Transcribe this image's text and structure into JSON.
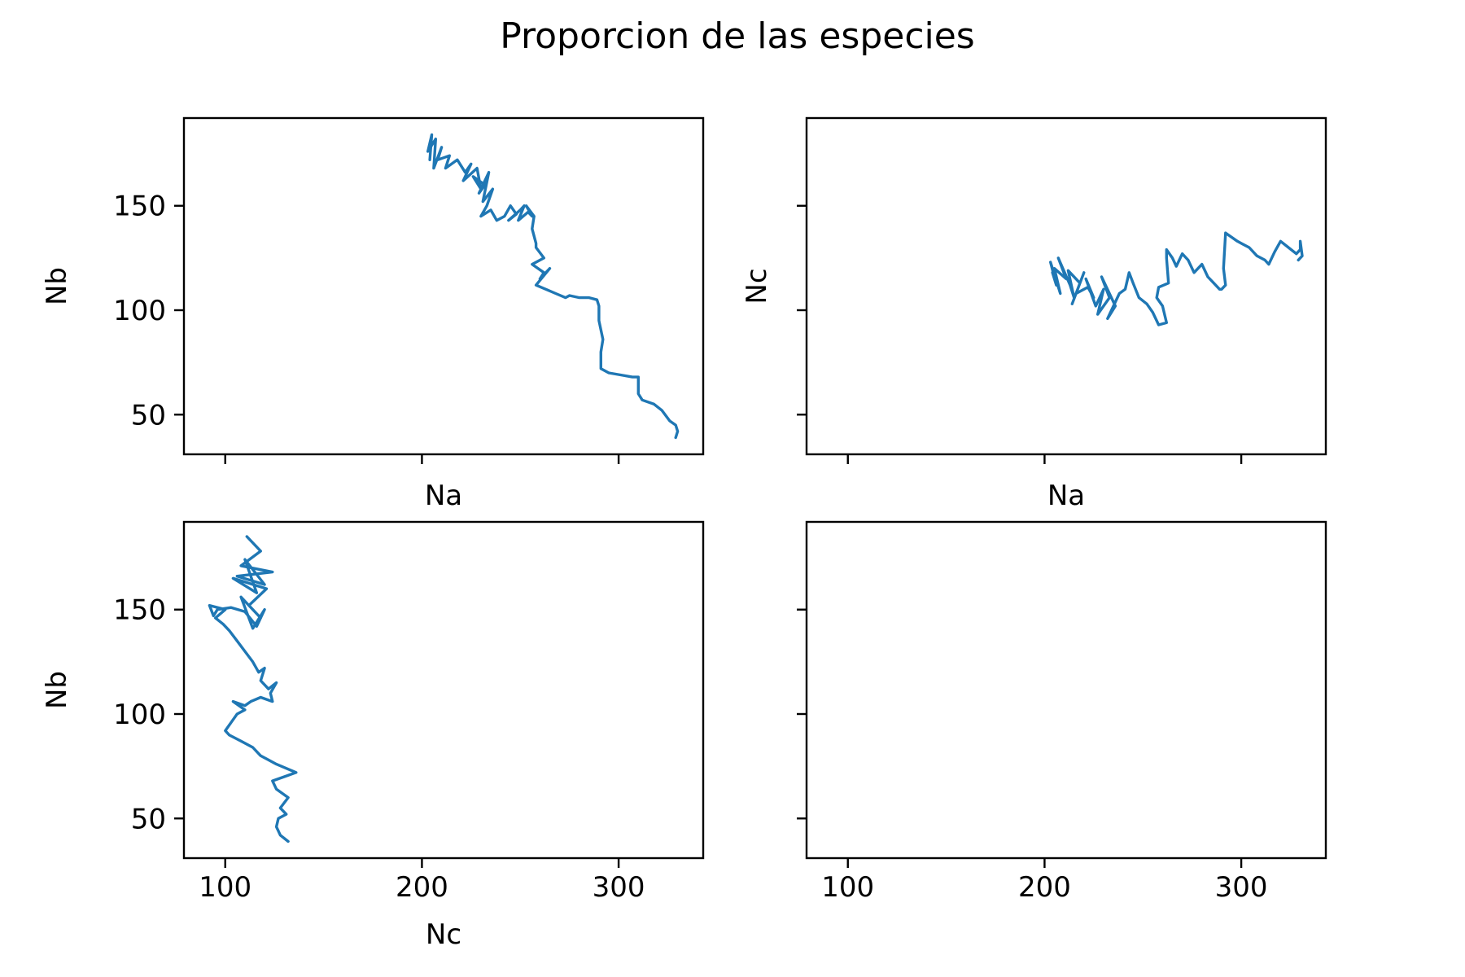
{
  "title": "Proporcion de las especies",
  "colors": {
    "line": "#1f77b4",
    "axes": "#000000",
    "background": "#ffffff"
  },
  "shared_x_ticks": [
    100,
    200,
    300
  ],
  "shared_y_ticks": [
    50,
    100,
    150
  ],
  "chart_data": [
    {
      "type": "line",
      "panel": "top-left",
      "xlabel": "Na",
      "ylabel": "Nb",
      "xlim": [
        79,
        343
      ],
      "ylim": [
        31,
        192
      ],
      "xticks": [
        100,
        200,
        300
      ],
      "yticks": [
        50,
        100,
        150
      ],
      "show_x_ticklabels": false,
      "show_y_ticklabels": true,
      "series": [
        {
          "x": [
            204,
            205,
            203,
            207,
            206,
            210,
            208,
            214,
            212,
            218,
            222,
            225,
            221,
            228,
            230,
            226,
            232,
            229,
            234,
            231,
            236,
            233,
            230,
            235,
            238,
            242,
            245,
            248,
            244,
            250,
            252,
            249,
            254,
            256,
            253,
            257,
            256,
            258,
            258,
            262,
            256,
            262,
            260,
            265,
            258,
            263,
            268,
            273,
            275,
            280,
            285,
            289,
            290,
            290,
            292,
            291,
            291,
            291,
            295,
            301,
            307,
            310,
            310,
            312,
            318,
            322,
            326,
            329,
            330,
            329
          ],
          "y": [
            172,
            184,
            176,
            182,
            168,
            178,
            172,
            174,
            168,
            172,
            166,
            170,
            162,
            168,
            158,
            164,
            160,
            156,
            166,
            152,
            158,
            150,
            145,
            148,
            143,
            145,
            150,
            146,
            143,
            148,
            150,
            143,
            147,
            145,
            150,
            145,
            139,
            132,
            130,
            125,
            122,
            118,
            115,
            120,
            112,
            110,
            108,
            106,
            107,
            106,
            106,
            105,
            102,
            95,
            86,
            80,
            75,
            72,
            70,
            69,
            68,
            68,
            60,
            57,
            55,
            52,
            47,
            45,
            42,
            39
          ]
        }
      ]
    },
    {
      "type": "line",
      "panel": "top-right",
      "xlabel": "Na",
      "ylabel": "Nc",
      "xlim": [
        79,
        343
      ],
      "ylim": [
        31,
        192
      ],
      "xticks": [
        100,
        200,
        300
      ],
      "yticks": [
        50,
        100,
        150
      ],
      "show_x_ticklabels": false,
      "show_y_ticklabels": false,
      "series": [
        {
          "x": [
            204,
            206,
            203,
            208,
            205,
            211,
            207,
            213,
            215,
            212,
            218,
            214,
            220,
            216,
            222,
            225,
            221,
            226,
            230,
            227,
            233,
            229,
            236,
            232,
            238,
            241,
            243,
            245,
            248,
            252,
            255,
            258,
            262,
            260,
            257,
            258,
            263,
            262,
            262,
            265,
            267,
            270,
            273,
            276,
            280,
            283,
            286,
            289,
            290,
            292,
            291,
            292,
            298,
            304,
            308,
            312,
            314,
            317,
            320,
            324,
            328,
            330,
            330,
            331,
            329
          ],
          "y": [
            118,
            112,
            123,
            108,
            120,
            115,
            125,
            112,
            106,
            119,
            113,
            103,
            118,
            108,
            111,
            106,
            115,
            102,
            110,
            98,
            106,
            116,
            102,
            96,
            108,
            110,
            118,
            113,
            106,
            103,
            99,
            93,
            94,
            102,
            106,
            111,
            113,
            125,
            129,
            125,
            121,
            127,
            124,
            118,
            122,
            116,
            113,
            110,
            110,
            112,
            120,
            137,
            133,
            130,
            126,
            124,
            122,
            128,
            133,
            130,
            127,
            129,
            133,
            126,
            124
          ]
        }
      ]
    },
    {
      "type": "line",
      "panel": "bottom-left",
      "xlabel": "Nc",
      "ylabel": "Nb",
      "xlim": [
        79,
        343
      ],
      "ylim": [
        31,
        192
      ],
      "xticks": [
        100,
        200,
        300
      ],
      "yticks": [
        50,
        100,
        150
      ],
      "show_x_ticklabels": true,
      "show_y_ticklabels": true,
      "series": [
        {
          "x": [
            111,
            118,
            108,
            124,
            106,
            120,
            110,
            116,
            104,
            121,
            112,
            118,
            108,
            114,
            120,
            116,
            110,
            103,
            96,
            94,
            92,
            100,
            95,
            99,
            102,
            106,
            110,
            114,
            117,
            120,
            118,
            122,
            126,
            123,
            124,
            118,
            113,
            110,
            104,
            110,
            106,
            103,
            100,
            102,
            108,
            114,
            118,
            122,
            126,
            131,
            136,
            130,
            124,
            126,
            132,
            128,
            131,
            127,
            126,
            128,
            132
          ],
          "y": [
            185,
            178,
            171,
            168,
            166,
            162,
            174,
            158,
            165,
            160,
            152,
            146,
            156,
            141,
            150,
            142,
            149,
            151,
            150,
            147,
            152,
            150,
            146,
            143,
            140,
            135,
            130,
            125,
            120,
            122,
            116,
            112,
            115,
            110,
            106,
            108,
            106,
            104,
            106,
            102,
            100,
            96,
            92,
            90,
            87,
            84,
            80,
            78,
            76,
            74,
            72,
            70,
            68,
            64,
            60,
            55,
            52,
            50,
            46,
            42,
            39
          ]
        }
      ]
    },
    {
      "type": "line",
      "panel": "bottom-right",
      "xlabel": "",
      "ylabel": "",
      "xlim": [
        79,
        343
      ],
      "ylim": [
        31,
        192
      ],
      "xticks": [
        100,
        200,
        300
      ],
      "yticks": [
        50,
        100,
        150
      ],
      "show_x_ticklabels": true,
      "show_y_ticklabels": false,
      "series": []
    }
  ]
}
